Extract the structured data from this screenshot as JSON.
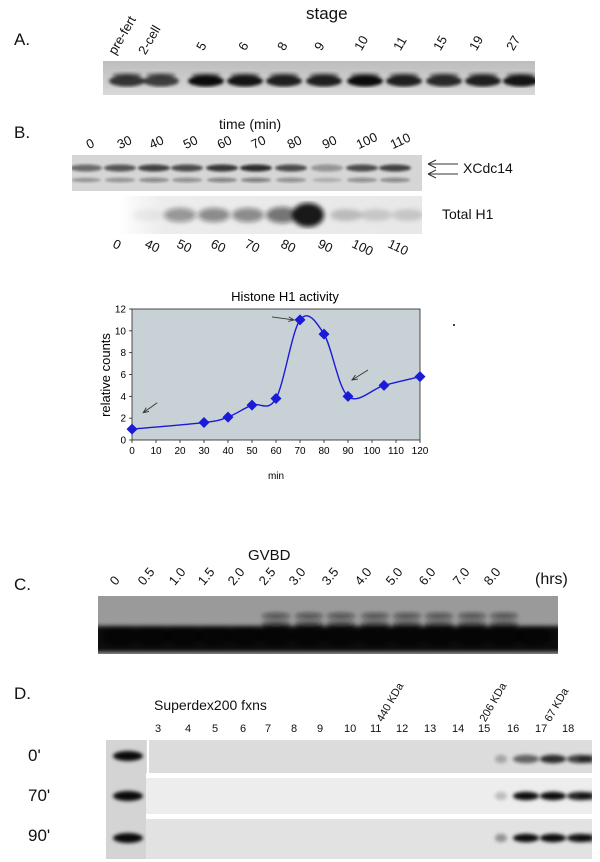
{
  "panel_a": {
    "label": "A.",
    "title": "stage",
    "lanes": [
      "pre-fert",
      "2-cell",
      "5",
      "6",
      "8",
      "9",
      "10",
      "11",
      "15",
      "19",
      "27"
    ]
  },
  "panel_b": {
    "label": "B.",
    "title": "time (min)",
    "lanes_top": [
      "0",
      "30",
      "40",
      "50",
      "60",
      "70",
      "80",
      "90",
      "100",
      "110"
    ],
    "lanes_bottom": [
      "0",
      "40",
      "50",
      "60",
      "70",
      "80",
      "90",
      "100",
      "110"
    ],
    "blot1_label": "XCdc14",
    "blot2_label": "Total H1"
  },
  "chart_data": {
    "type": "line",
    "title": "Histone H1 activity",
    "xlabel": "min",
    "ylabel": "relative counts",
    "xlim": [
      0,
      120
    ],
    "ylim": [
      0,
      12
    ],
    "xticks": [
      "0",
      "10",
      "20",
      "30",
      "40",
      "50",
      "60",
      "70",
      "80",
      "90",
      "100",
      "110",
      "120"
    ],
    "yticks": [
      "0",
      "2",
      "4",
      "6",
      "8",
      "10",
      "12"
    ],
    "x": [
      0,
      30,
      40,
      50,
      60,
      70,
      80,
      90,
      105,
      120
    ],
    "y": [
      1.0,
      1.6,
      2.1,
      3.2,
      3.8,
      11.0,
      9.7,
      4.0,
      5.0,
      5.8
    ],
    "grid": false,
    "background": "#c8d2d6",
    "series_color": "#1a1ad9",
    "arrows_at_x": [
      3,
      70,
      90
    ]
  },
  "panel_c": {
    "label": "C.",
    "title": "GVBD",
    "lanes": [
      "0",
      "0.5",
      "1.0",
      "1.5",
      "2.0",
      "2.5",
      "3.0",
      "3.5",
      "4.0",
      "5.0",
      "6.0",
      "7.0",
      "8.0"
    ],
    "unit": "(hrs)"
  },
  "panel_d": {
    "label": "D.",
    "title": "Superdex200 fxns",
    "fractions": [
      "3",
      "4",
      "5",
      "6",
      "7",
      "8",
      "9",
      "10",
      "11",
      "12",
      "13",
      "14",
      "15",
      "16",
      "17",
      "18"
    ],
    "markers": [
      "440 KDa",
      "206 KDa",
      "67 KDa"
    ],
    "rows": [
      "0'",
      "70'",
      "90'"
    ]
  }
}
